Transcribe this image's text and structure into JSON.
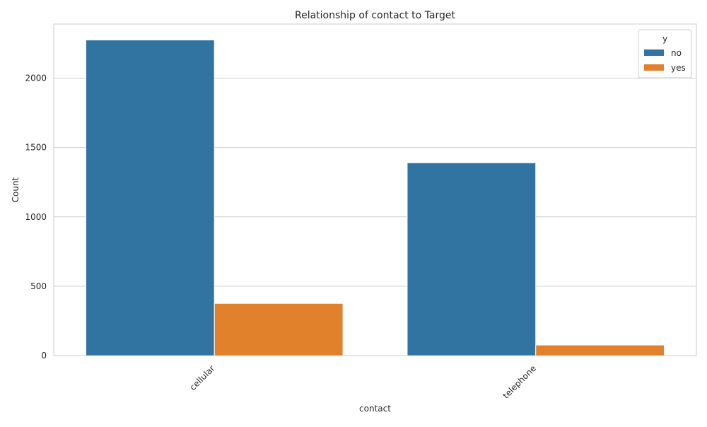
{
  "chart_data": {
    "type": "bar",
    "title": "Relationship of contact to Target",
    "xlabel": "contact",
    "ylabel": "Count",
    "categories": [
      "cellular",
      "telephone"
    ],
    "series": [
      {
        "name": "no",
        "values": [
          2275,
          1390
        ],
        "color": "#3274a1"
      },
      {
        "name": "yes",
        "values": [
          376,
          76
        ],
        "color": "#e1812c"
      }
    ],
    "ylim": [
      0,
      2390
    ],
    "yticks": [
      0,
      500,
      1000,
      1500,
      2000
    ],
    "grid": true,
    "legend": {
      "title": "y",
      "position": "top-right"
    }
  }
}
